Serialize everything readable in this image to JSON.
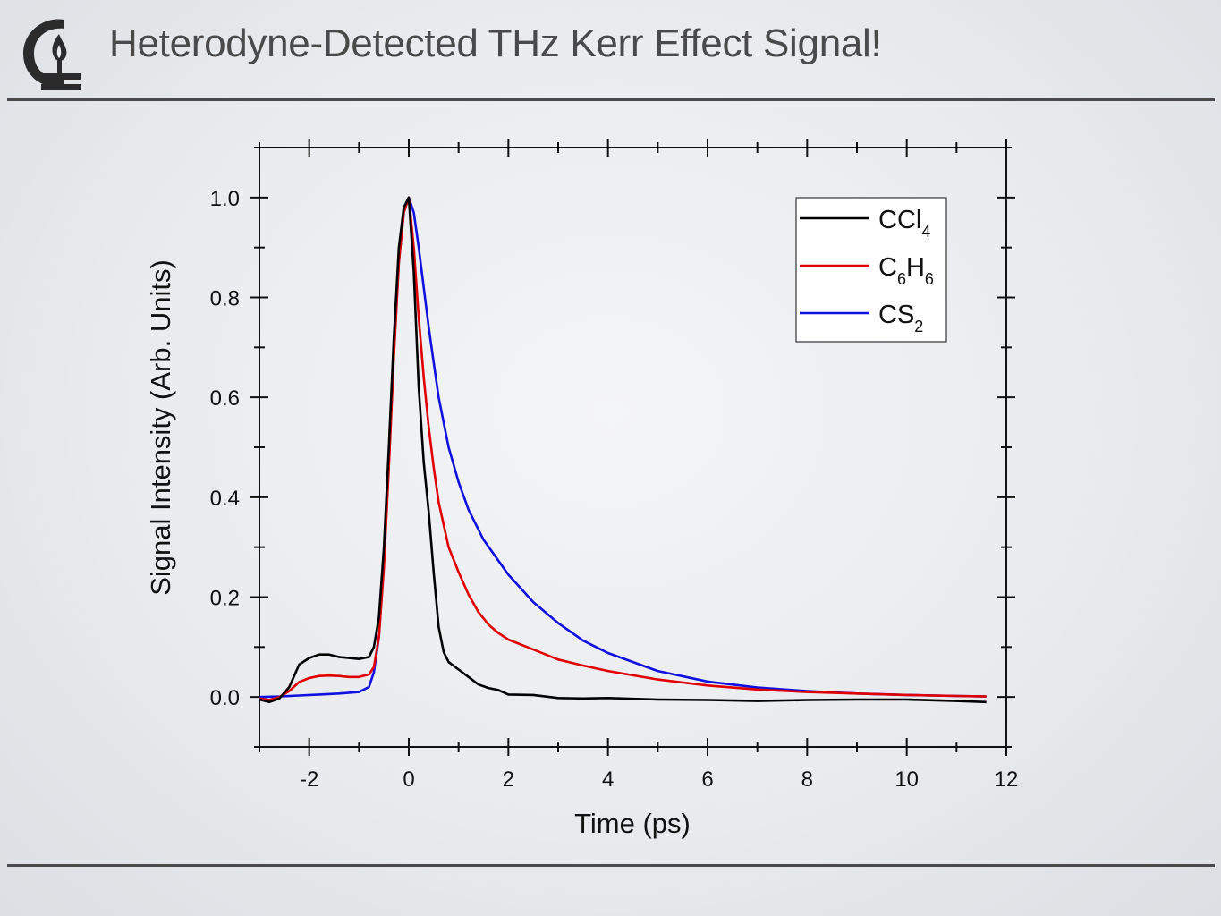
{
  "slide": {
    "title": "Heterodyne-Detected THz Kerr Effect Signal!"
  },
  "colors": {
    "title": "#4a4a4a",
    "rule": "#4a4a4a",
    "logo": "#2b2b2b"
  },
  "logo": {
    "icon": "flame-c-logo-icon"
  },
  "chart_data": {
    "type": "line",
    "title": "",
    "xlabel": "Time (ps)",
    "ylabel": "Signal Intensity (Arb. Units)",
    "xlim": [
      -3,
      12
    ],
    "ylim": [
      -0.1,
      1.1
    ],
    "xticks": [
      -2,
      0,
      2,
      4,
      6,
      8,
      10,
      12
    ],
    "yticks": [
      0.0,
      0.2,
      0.4,
      0.6,
      0.8,
      1.0
    ],
    "xtick_labels": [
      "-2",
      "0",
      "2",
      "4",
      "6",
      "8",
      "10",
      "12"
    ],
    "ytick_labels": [
      "0.0",
      "0.2",
      "0.4",
      "0.6",
      "0.8",
      "1.0"
    ],
    "grid": false,
    "legend_position": "top-right",
    "series": [
      {
        "name": "CCl4",
        "label_main": [
          "CCl",
          ""
        ],
        "label_sub": [
          "4",
          ""
        ],
        "color": "#000000",
        "x": [
          -3.0,
          -2.8,
          -2.6,
          -2.4,
          -2.2,
          -2.0,
          -1.8,
          -1.6,
          -1.4,
          -1.2,
          -1.0,
          -0.8,
          -0.7,
          -0.6,
          -0.5,
          -0.4,
          -0.3,
          -0.2,
          -0.1,
          0.0,
          0.1,
          0.2,
          0.3,
          0.4,
          0.5,
          0.6,
          0.7,
          0.8,
          1.0,
          1.2,
          1.4,
          1.6,
          1.8,
          2.0,
          2.5,
          3.0,
          3.5,
          4.0,
          5.0,
          6.0,
          7.0,
          8.0,
          9.0,
          10.0,
          11.0,
          11.6
        ],
        "y": [
          -0.005,
          -0.01,
          -0.003,
          0.02,
          0.065,
          0.078,
          0.085,
          0.085,
          0.08,
          0.078,
          0.076,
          0.08,
          0.1,
          0.16,
          0.3,
          0.5,
          0.72,
          0.9,
          0.98,
          1.0,
          0.85,
          0.62,
          0.47,
          0.37,
          0.25,
          0.14,
          0.09,
          0.07,
          0.055,
          0.04,
          0.025,
          0.018,
          0.014,
          0.005,
          0.004,
          -0.002,
          -0.003,
          -0.002,
          -0.005,
          -0.006,
          -0.008,
          -0.006,
          -0.005,
          -0.005,
          -0.008,
          -0.01
        ]
      },
      {
        "name": "C6H6",
        "label_main": [
          "C",
          "H",
          ""
        ],
        "label_sub": [
          "6",
          "6",
          ""
        ],
        "color": "#e00000",
        "x": [
          -3.0,
          -2.8,
          -2.6,
          -2.4,
          -2.2,
          -2.0,
          -1.8,
          -1.6,
          -1.4,
          -1.2,
          -1.0,
          -0.8,
          -0.7,
          -0.6,
          -0.5,
          -0.4,
          -0.3,
          -0.2,
          -0.1,
          0.0,
          0.1,
          0.2,
          0.3,
          0.4,
          0.5,
          0.6,
          0.8,
          1.0,
          1.2,
          1.4,
          1.6,
          1.8,
          2.0,
          2.5,
          3.0,
          3.5,
          4.0,
          5.0,
          6.0,
          7.0,
          8.0,
          9.0,
          10.0,
          11.0,
          11.6
        ],
        "y": [
          -0.003,
          -0.006,
          0.0,
          0.012,
          0.03,
          0.038,
          0.042,
          0.043,
          0.042,
          0.04,
          0.04,
          0.045,
          0.06,
          0.12,
          0.26,
          0.46,
          0.68,
          0.87,
          0.97,
          1.0,
          0.9,
          0.76,
          0.64,
          0.54,
          0.46,
          0.39,
          0.3,
          0.25,
          0.205,
          0.17,
          0.145,
          0.128,
          0.115,
          0.095,
          0.075,
          0.063,
          0.052,
          0.035,
          0.023,
          0.015,
          0.01,
          0.007,
          0.004,
          0.002,
          0.001
        ]
      },
      {
        "name": "CS2",
        "label_main": [
          "CS",
          ""
        ],
        "label_sub": [
          "2",
          ""
        ],
        "color": "#1010e0",
        "x": [
          -3.0,
          -2.6,
          -2.2,
          -1.8,
          -1.4,
          -1.0,
          -0.8,
          -0.7,
          -0.6,
          -0.5,
          -0.4,
          -0.3,
          -0.2,
          -0.1,
          0.0,
          0.1,
          0.2,
          0.3,
          0.4,
          0.5,
          0.6,
          0.8,
          1.0,
          1.2,
          1.5,
          2.0,
          2.5,
          3.0,
          3.5,
          4.0,
          5.0,
          6.0,
          7.0,
          8.0,
          9.0,
          10.0,
          11.0,
          11.6
        ],
        "y": [
          0.0,
          0.001,
          0.003,
          0.005,
          0.007,
          0.01,
          0.02,
          0.05,
          0.12,
          0.27,
          0.47,
          0.69,
          0.87,
          0.97,
          1.0,
          0.97,
          0.9,
          0.82,
          0.74,
          0.67,
          0.6,
          0.5,
          0.43,
          0.375,
          0.315,
          0.245,
          0.19,
          0.148,
          0.113,
          0.088,
          0.052,
          0.031,
          0.019,
          0.012,
          0.007,
          0.004,
          0.002,
          0.001
        ]
      }
    ]
  }
}
